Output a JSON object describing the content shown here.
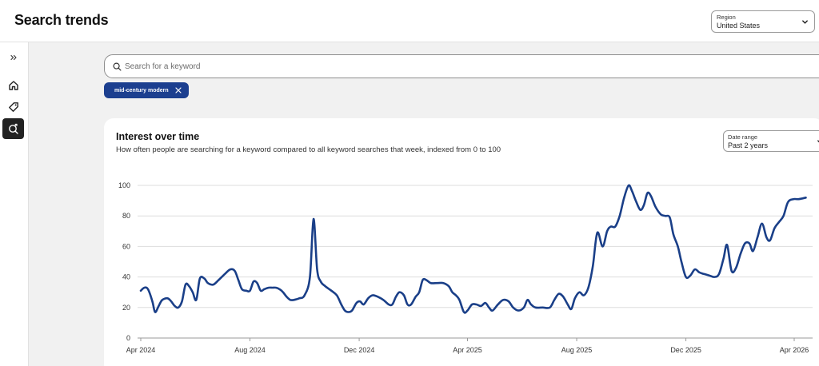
{
  "header": {
    "title": "Search trends",
    "region": {
      "label": "Region",
      "value": "United States"
    }
  },
  "sidebar": {
    "items": [
      {
        "name": "expand",
        "icon": "double-chevron-right-icon"
      },
      {
        "name": "home",
        "icon": "home-icon"
      },
      {
        "name": "tags",
        "icon": "tag-icon"
      },
      {
        "name": "search-trends",
        "icon": "search-trend-icon",
        "active": true
      }
    ]
  },
  "search": {
    "placeholder": "Search for a keyword",
    "value": ""
  },
  "chips": [
    {
      "label": "mid-century modern"
    }
  ],
  "card": {
    "title": "Interest over time",
    "subtitle": "How often people are searching for a keyword compared to all keyword searches that week, indexed from 0 to 100",
    "date_range": {
      "label": "Date range",
      "value": "Past 2 years"
    }
  },
  "colors": {
    "accent": "#1c3f8f",
    "line": "#1a3f88",
    "grid": "#dddddd"
  },
  "chart_data": {
    "type": "line",
    "title": "Interest over time",
    "xlabel": "",
    "ylabel": "",
    "ylim": [
      0,
      100
    ],
    "yticks": [
      0,
      20,
      40,
      60,
      80,
      100
    ],
    "x_start": "2024-04-01",
    "x_end": "2026-04-01",
    "x_tick_labels": [
      {
        "label": "Apr 2024",
        "date": "2024-04-01"
      },
      {
        "label": "Aug 2024",
        "date": "2024-08-01"
      },
      {
        "label": "Dec 2024",
        "date": "2024-12-01"
      },
      {
        "label": "Apr 2025",
        "date": "2025-04-01"
      },
      {
        "label": "Aug 2025",
        "date": "2025-08-01"
      },
      {
        "label": "Dec 2025",
        "date": "2025-12-01"
      },
      {
        "label": "Apr 2026",
        "date": "2026-04-01"
      }
    ],
    "grid": true,
    "legend": "none",
    "series": [
      {
        "points": [
          [
            "2024-04-01",
            31
          ],
          [
            "2024-04-05",
            33
          ],
          [
            "2024-04-09",
            32
          ],
          [
            "2024-04-14",
            24
          ],
          [
            "2024-04-17",
            17
          ],
          [
            "2024-04-21",
            21
          ],
          [
            "2024-04-25",
            25
          ],
          [
            "2024-05-01",
            26
          ],
          [
            "2024-05-05",
            24
          ],
          [
            "2024-05-09",
            21
          ],
          [
            "2024-05-13",
            20
          ],
          [
            "2024-05-17",
            24
          ],
          [
            "2024-05-21",
            35
          ],
          [
            "2024-05-25",
            34
          ],
          [
            "2024-05-29",
            30
          ],
          [
            "2024-06-02",
            25
          ],
          [
            "2024-06-06",
            39
          ],
          [
            "2024-06-11",
            39
          ],
          [
            "2024-06-15",
            36
          ],
          [
            "2024-06-21",
            35
          ],
          [
            "2024-06-27",
            38
          ],
          [
            "2024-07-04",
            42
          ],
          [
            "2024-07-10",
            45
          ],
          [
            "2024-07-15",
            44
          ],
          [
            "2024-07-19",
            38
          ],
          [
            "2024-07-23",
            32
          ],
          [
            "2024-07-28",
            31
          ],
          [
            "2024-08-01",
            31
          ],
          [
            "2024-08-05",
            37
          ],
          [
            "2024-08-09",
            36
          ],
          [
            "2024-08-13",
            31
          ],
          [
            "2024-08-17",
            32
          ],
          [
            "2024-08-22",
            33
          ],
          [
            "2024-08-26",
            33
          ],
          [
            "2024-08-30",
            33
          ],
          [
            "2024-09-03",
            32
          ],
          [
            "2024-09-07",
            30
          ],
          [
            "2024-09-11",
            27
          ],
          [
            "2024-09-15",
            25
          ],
          [
            "2024-09-19",
            25
          ],
          [
            "2024-09-25",
            26
          ],
          [
            "2024-10-01",
            28
          ],
          [
            "2024-10-07",
            40
          ],
          [
            "2024-10-11",
            78
          ],
          [
            "2024-10-15",
            45
          ],
          [
            "2024-10-19",
            37
          ],
          [
            "2024-10-24",
            34
          ],
          [
            "2024-10-31",
            31
          ],
          [
            "2024-11-06",
            28
          ],
          [
            "2024-11-11",
            22
          ],
          [
            "2024-11-15",
            18
          ],
          [
            "2024-11-19",
            17
          ],
          [
            "2024-11-23",
            18
          ],
          [
            "2024-11-28",
            23
          ],
          [
            "2024-12-02",
            24
          ],
          [
            "2024-12-06",
            22
          ],
          [
            "2024-12-11",
            26
          ],
          [
            "2024-12-16",
            28
          ],
          [
            "2024-12-22",
            27
          ],
          [
            "2024-12-28",
            25
          ],
          [
            "2025-01-03",
            22
          ],
          [
            "2025-01-07",
            22
          ],
          [
            "2025-01-11",
            27
          ],
          [
            "2025-01-15",
            30
          ],
          [
            "2025-01-20",
            28
          ],
          [
            "2025-01-24",
            22
          ],
          [
            "2025-01-28",
            22
          ],
          [
            "2025-02-02",
            27
          ],
          [
            "2025-02-06",
            30
          ],
          [
            "2025-02-10",
            38
          ],
          [
            "2025-02-14",
            38
          ],
          [
            "2025-02-19",
            36
          ],
          [
            "2025-02-26",
            36
          ],
          [
            "2025-03-05",
            36
          ],
          [
            "2025-03-11",
            34
          ],
          [
            "2025-03-15",
            30
          ],
          [
            "2025-03-19",
            28
          ],
          [
            "2025-03-23",
            25
          ],
          [
            "2025-03-28",
            17
          ],
          [
            "2025-04-01",
            18
          ],
          [
            "2025-04-06",
            22
          ],
          [
            "2025-04-11",
            22
          ],
          [
            "2025-04-16",
            21
          ],
          [
            "2025-04-21",
            23
          ],
          [
            "2025-04-25",
            20
          ],
          [
            "2025-04-29",
            18
          ],
          [
            "2025-05-05",
            22
          ],
          [
            "2025-05-11",
            25
          ],
          [
            "2025-05-17",
            24
          ],
          [
            "2025-05-22",
            20
          ],
          [
            "2025-05-28",
            18
          ],
          [
            "2025-06-03",
            20
          ],
          [
            "2025-06-07",
            25
          ],
          [
            "2025-06-11",
            22
          ],
          [
            "2025-06-16",
            20
          ],
          [
            "2025-06-24",
            20
          ],
          [
            "2025-07-02",
            20
          ],
          [
            "2025-07-07",
            25
          ],
          [
            "2025-07-12",
            29
          ],
          [
            "2025-07-17",
            27
          ],
          [
            "2025-07-22",
            22
          ],
          [
            "2025-07-26",
            19
          ],
          [
            "2025-07-30",
            26
          ],
          [
            "2025-08-04",
            30
          ],
          [
            "2025-08-09",
            28
          ],
          [
            "2025-08-14",
            33
          ],
          [
            "2025-08-19",
            47
          ],
          [
            "2025-08-24",
            69
          ],
          [
            "2025-08-30",
            60
          ],
          [
            "2025-09-04",
            70
          ],
          [
            "2025-09-08",
            73
          ],
          [
            "2025-09-13",
            73
          ],
          [
            "2025-09-18",
            80
          ],
          [
            "2025-09-23",
            92
          ],
          [
            "2025-09-28",
            100
          ],
          [
            "2025-10-02",
            96
          ],
          [
            "2025-10-06",
            90
          ],
          [
            "2025-10-11",
            84
          ],
          [
            "2025-10-15",
            87
          ],
          [
            "2025-10-19",
            95
          ],
          [
            "2025-10-23",
            93
          ],
          [
            "2025-10-28",
            86
          ],
          [
            "2025-11-03",
            81
          ],
          [
            "2025-11-08",
            80
          ],
          [
            "2025-11-13",
            79
          ],
          [
            "2025-11-17",
            68
          ],
          [
            "2025-11-22",
            60
          ],
          [
            "2025-11-26",
            50
          ],
          [
            "2025-12-01",
            40
          ],
          [
            "2025-12-06",
            41
          ],
          [
            "2025-12-11",
            45
          ],
          [
            "2025-12-16",
            43
          ],
          [
            "2025-12-21",
            42
          ],
          [
            "2025-12-27",
            41
          ],
          [
            "2026-01-02",
            40
          ],
          [
            "2026-01-07",
            42
          ],
          [
            "2026-01-12",
            52
          ],
          [
            "2026-01-16",
            61
          ],
          [
            "2026-01-21",
            44
          ],
          [
            "2026-01-26",
            46
          ],
          [
            "2026-01-31",
            55
          ],
          [
            "2026-02-05",
            62
          ],
          [
            "2026-02-10",
            62
          ],
          [
            "2026-02-14",
            57
          ],
          [
            "2026-02-19",
            66
          ],
          [
            "2026-02-24",
            75
          ],
          [
            "2026-03-01",
            66
          ],
          [
            "2026-03-05",
            64
          ],
          [
            "2026-03-10",
            72
          ],
          [
            "2026-03-15",
            76
          ],
          [
            "2026-03-20",
            80
          ],
          [
            "2026-03-25",
            89
          ],
          [
            "2026-03-31",
            91
          ],
          [
            "2026-04-06",
            91
          ],
          [
            "2026-04-14",
            92
          ]
        ]
      }
    ]
  }
}
